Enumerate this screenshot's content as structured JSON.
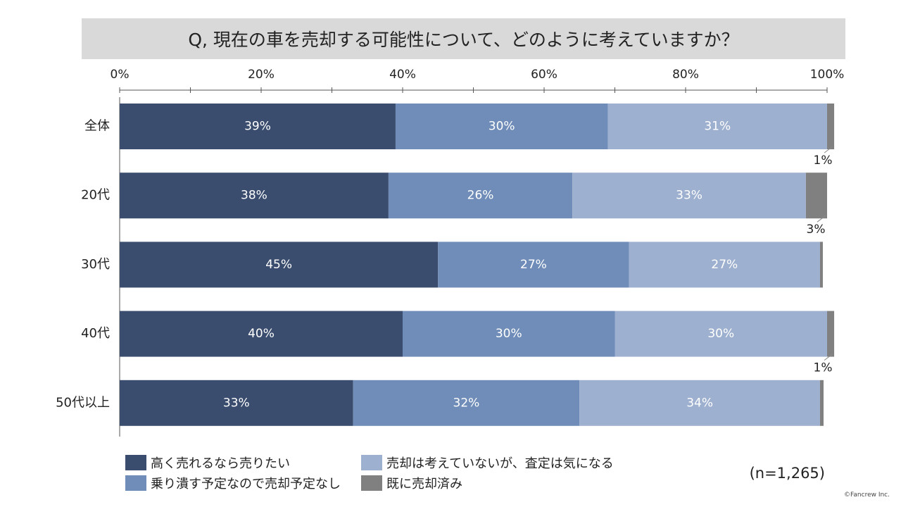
{
  "title": "Q, 現在の車を売却する可能性について、どのように考えていますか？",
  "sample_size": "(n=1,265)",
  "copyright": "©Fancrew Inc.",
  "chart_data": {
    "type": "bar",
    "orientation": "horizontal",
    "stacked": "percent",
    "title": "Q, 現在の車を売却する可能性について、どのように考えていますか？",
    "xlim": [
      0,
      100
    ],
    "x_ticks": [
      "0%",
      "20%",
      "40%",
      "60%",
      "80%",
      "100%"
    ],
    "categories": [
      "全体",
      "20代",
      "30代",
      "40代",
      "50代以上"
    ],
    "series": [
      {
        "name": "高く売れるなら売りたい",
        "color": "#3a4d6e",
        "values": [
          39,
          38,
          45,
          40,
          33
        ],
        "labels": [
          "39%",
          "38%",
          "45%",
          "40%",
          "33%"
        ]
      },
      {
        "name": "乗り潰す予定なので売却予定なし",
        "color": "#6f8db8",
        "values": [
          30,
          26,
          27,
          30,
          32
        ],
        "labels": [
          "30%",
          "26%",
          "27%",
          "30%",
          "32%"
        ]
      },
      {
        "name": "売却は考えていないが、査定は気になる",
        "color": "#9eb0cf",
        "values": [
          31,
          33,
          27,
          30,
          34
        ],
        "labels": [
          "31%",
          "33%",
          "27%",
          "30%",
          "34%"
        ]
      },
      {
        "name": "既に売却済み",
        "color": "#808080",
        "values": [
          1,
          3,
          0.4,
          1,
          0.5
        ],
        "labels": [
          "1%",
          "3%",
          "",
          "1%",
          ""
        ]
      }
    ],
    "legend_position": "bottom",
    "grid": false
  }
}
